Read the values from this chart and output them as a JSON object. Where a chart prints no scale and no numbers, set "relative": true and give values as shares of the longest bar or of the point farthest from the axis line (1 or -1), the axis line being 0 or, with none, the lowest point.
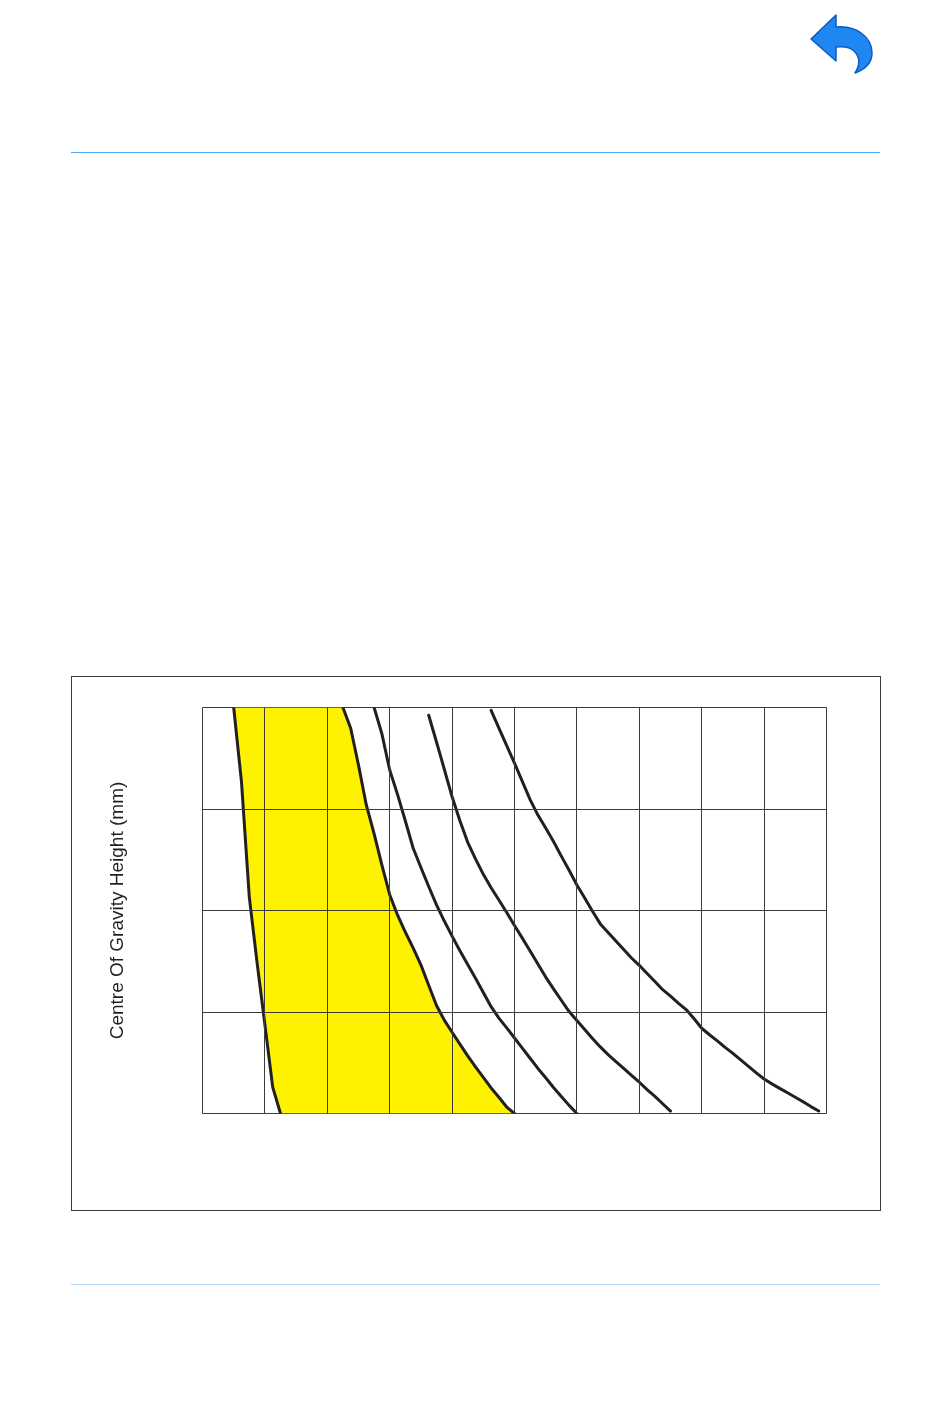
{
  "chart_data": {
    "type": "line",
    "relative": true,
    "ylabel": "Centre Of Gravity Height (mm)",
    "grid": true,
    "categories": [
      null,
      null,
      null,
      null,
      null,
      null,
      null,
      null,
      null,
      null,
      null,
      null,
      null,
      null,
      null,
      null,
      null,
      null,
      null,
      null,
      null,
      null,
      null,
      null,
      null,
      null,
      null,
      null,
      null,
      null,
      null,
      null,
      null,
      null,
      null,
      null,
      null,
      null,
      null,
      null,
      null,
      null,
      null,
      null,
      null,
      null,
      null,
      null,
      null,
      null,
      null,
      null,
      null,
      null,
      null,
      null,
      null,
      null,
      null,
      null,
      null,
      null,
      null,
      null,
      null,
      null,
      null,
      null,
      null,
      null,
      null,
      null,
      null,
      null,
      null,
      null,
      null,
      null,
      null,
      null,
      null
    ],
    "series": [
      {
        "color": "#231f20",
        "values": [
          null,
          null,
          null,
          null,
          1.0,
          0.816,
          0.533,
          0.371,
          0.219,
          0.065,
          0,
          null,
          null,
          null,
          null,
          null,
          null,
          null,
          null,
          null,
          null,
          null,
          null,
          null,
          null,
          null,
          null,
          null,
          null,
          null,
          null,
          null,
          null,
          null,
          null,
          null,
          null,
          null,
          null,
          null,
          null,
          null,
          null,
          null,
          null,
          null,
          null,
          null,
          null,
          null,
          null,
          null,
          null,
          null,
          null,
          null,
          null,
          null,
          null,
          null,
          null,
          null,
          null,
          null,
          null,
          null,
          null,
          null,
          null,
          null,
          null,
          null,
          null,
          null,
          null,
          null,
          null,
          null,
          null,
          null,
          null
        ]
      },
      {
        "color": "#231f20",
        "values": [
          null,
          null,
          null,
          null,
          null,
          null,
          null,
          null,
          null,
          null,
          null,
          null,
          null,
          null,
          null,
          null,
          null,
          null,
          1.0,
          0.949,
          0.858,
          0.76,
          0.689,
          0.612,
          0.539,
          0.489,
          0.447,
          0.408,
          0.366,
          0.316,
          0.266,
          0.23,
          0.2,
          0.171,
          0.142,
          0.115,
          0.089,
          0.063,
          0.04,
          0.016,
          0,
          null,
          null,
          null,
          null,
          null,
          null,
          null,
          null,
          null,
          null,
          null,
          null,
          null,
          null,
          null,
          null,
          null,
          null,
          null,
          null,
          null,
          null,
          null,
          null,
          null,
          null,
          null,
          null,
          null,
          null,
          null,
          null,
          null,
          null,
          null,
          null,
          null,
          null,
          null,
          null
        ],
        "upper": [
          null,
          null,
          null,
          null,
          1.0,
          1.0,
          1.0,
          1.0,
          1.0,
          1.0,
          1.0,
          1.0,
          1.0,
          1.0,
          1.0,
          1.0,
          1.0,
          1.0,
          1.0,
          0.949,
          0.858,
          0.76,
          0.689,
          0.612,
          0.539,
          0.489,
          0.447,
          0.408,
          0.366,
          0.316,
          0.266,
          0.23,
          0.2,
          0.171,
          0.142,
          0.115,
          0.089,
          0.063,
          0.04,
          0.016,
          0,
          null,
          null,
          null,
          null,
          null,
          null,
          null,
          null,
          null,
          null,
          null,
          null,
          null,
          null,
          null,
          null,
          null,
          null,
          null,
          null,
          null,
          null,
          null,
          null,
          null,
          null,
          null,
          null,
          null,
          null,
          null,
          null,
          null,
          null,
          null,
          null,
          null,
          null,
          null,
          null
        ],
        "lower": [
          null,
          null,
          null,
          null,
          1.0,
          0.816,
          0.533,
          0.371,
          0.219,
          0.065,
          0,
          0,
          0,
          0,
          0,
          0,
          0,
          0,
          0,
          0,
          0,
          0,
          0,
          0,
          0,
          0,
          0,
          0,
          0,
          0,
          0,
          0,
          0,
          0,
          0,
          0,
          0,
          0,
          0,
          0,
          0,
          null,
          null,
          null,
          null,
          null,
          null,
          null,
          null,
          null,
          null,
          null,
          null,
          null,
          null,
          null,
          null,
          null,
          null,
          null,
          null,
          null,
          null,
          null,
          null,
          null,
          null,
          null,
          null,
          null,
          null,
          null,
          null,
          null,
          null,
          null,
          null,
          null,
          null,
          null,
          null
        ]
      },
      {
        "color": "#231f20",
        "values": [
          null,
          null,
          null,
          null,
          null,
          null,
          null,
          null,
          null,
          null,
          null,
          null,
          null,
          null,
          null,
          null,
          null,
          null,
          null,
          null,
          null,
          null,
          1.0,
          0.935,
          0.846,
          0.786,
          0.721,
          0.654,
          0.606,
          0.559,
          0.514,
          0.474,
          0.437,
          0.401,
          0.367,
          0.333,
          0.298,
          0.263,
          0.235,
          0.211,
          0.186,
          0.161,
          0.136,
          0.111,
          0.088,
          0.064,
          0.042,
          0.02,
          0,
          null,
          null,
          null,
          null,
          null,
          null,
          null,
          null,
          null,
          null,
          null,
          null,
          null,
          null,
          null,
          null,
          null,
          null,
          null,
          null,
          null,
          null,
          null,
          null,
          null,
          null,
          null,
          null,
          null,
          null,
          null,
          null
        ]
      },
      {
        "color": "#231f20",
        "values": [
          null,
          null,
          null,
          null,
          null,
          null,
          null,
          null,
          null,
          null,
          null,
          null,
          null,
          null,
          null,
          null,
          null,
          null,
          null,
          null,
          null,
          null,
          null,
          null,
          null,
          null,
          null,
          null,
          null,
          0.981,
          0.915,
          0.848,
          0.78,
          0.721,
          0.668,
          0.627,
          0.589,
          0.556,
          0.526,
          0.495,
          0.463,
          0.432,
          0.4,
          0.368,
          0.336,
          0.307,
          0.279,
          0.251,
          0.229,
          0.207,
          0.185,
          0.164,
          0.145,
          0.128,
          0.111,
          0.094,
          0.077,
          0.059,
          0.042,
          0.024,
          0.006,
          null,
          null,
          null,
          null,
          null,
          null,
          null,
          null,
          null,
          null,
          null,
          null,
          null,
          null,
          null,
          null,
          null,
          null,
          null,
          null
        ]
      },
      {
        "color": "#231f20",
        "values": [
          null,
          null,
          null,
          null,
          null,
          null,
          null,
          null,
          null,
          null,
          null,
          null,
          null,
          null,
          null,
          null,
          null,
          null,
          null,
          null,
          null,
          null,
          null,
          null,
          null,
          null,
          null,
          null,
          null,
          null,
          null,
          null,
          null,
          null,
          null,
          null,
          null,
          0.993,
          0.949,
          0.906,
          0.863,
          0.818,
          0.773,
          0.735,
          0.703,
          0.67,
          0.634,
          0.599,
          0.563,
          0.531,
          0.498,
          0.467,
          0.446,
          0.425,
          0.404,
          0.383,
          0.365,
          0.345,
          0.325,
          0.305,
          0.289,
          0.272,
          0.256,
          0.234,
          0.21,
          0.194,
          0.179,
          0.163,
          0.148,
          0.132,
          0.116,
          0.1,
          0.085,
          0.073,
          0.062,
          0.051,
          0.04,
          0.029,
          0.017,
          0.006,
          null
        ]
      }
    ]
  }
}
